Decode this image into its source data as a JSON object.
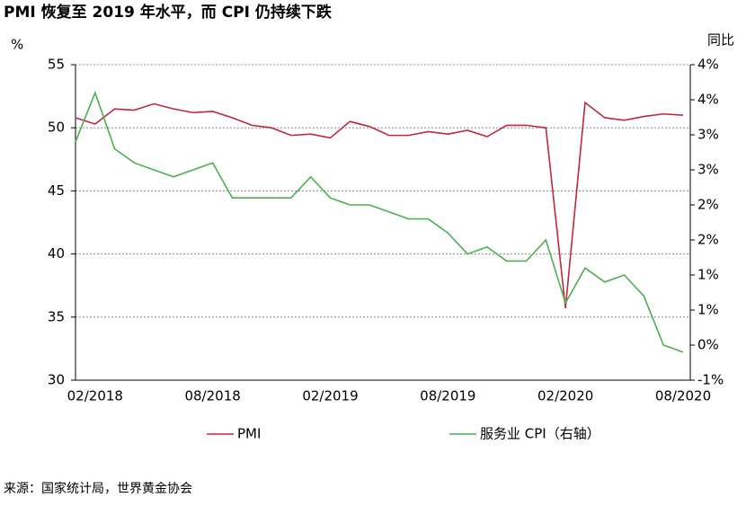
{
  "chart_data": {
    "type": "line",
    "title": "PMI 恢复至 2019 年水平，而 CPI 仍持续下跌",
    "y_label": "%",
    "y2_label": "同比",
    "source": "来源：国家统计局，世界黄金协会",
    "categories": [
      null,
      "02/2018",
      null,
      null,
      null,
      null,
      null,
      "08/2018",
      null,
      null,
      null,
      null,
      null,
      "02/2019",
      null,
      null,
      null,
      null,
      null,
      "08/2019",
      null,
      null,
      null,
      null,
      null,
      "02/2020",
      null,
      null,
      null,
      null,
      null,
      "08/2020"
    ],
    "ylim": [
      30,
      55
    ],
    "yticks": [
      30,
      35,
      40,
      45,
      50,
      55
    ],
    "y2lim": [
      -0.5,
      4
    ],
    "y2ticks": [
      {
        "value": -0.5,
        "label": "-1%"
      },
      {
        "value": 0,
        "label": "0%"
      },
      {
        "value": 0.5,
        "label": "1%"
      },
      {
        "value": 1,
        "label": "1%"
      },
      {
        "value": 1.5,
        "label": "2%"
      },
      {
        "value": 2,
        "label": "2%"
      },
      {
        "value": 2.5,
        "label": "3%"
      },
      {
        "value": 3,
        "label": "3%"
      },
      {
        "value": 3.5,
        "label": "4%"
      },
      {
        "value": 4,
        "label": "4%"
      }
    ],
    "grid": true,
    "series": [
      {
        "name": "PMI",
        "color": "#c0283c",
        "values": [
          50.8,
          50.3,
          51.5,
          51.4,
          51.9,
          51.5,
          51.2,
          51.3,
          50.8,
          50.2,
          50.0,
          49.4,
          49.5,
          49.2,
          50.5,
          50.1,
          49.4,
          49.4,
          49.7,
          49.5,
          49.8,
          49.3,
          50.2,
          50.2,
          50.0,
          35.7,
          52.0,
          50.8,
          50.6,
          50.9,
          51.1,
          51.0
        ]
      },
      {
        "name": "服务业 CPI（右轴）",
        "color": "#4caf50",
        "axis": "y2",
        "values": [
          2.9,
          3.6,
          2.8,
          2.6,
          2.5,
          2.4,
          2.5,
          2.6,
          2.1,
          2.1,
          2.1,
          2.1,
          2.4,
          2.1,
          2.0,
          2.0,
          1.9,
          1.8,
          1.8,
          1.6,
          1.3,
          1.4,
          1.2,
          1.2,
          1.5,
          0.6,
          1.1,
          0.9,
          1.0,
          0.7,
          0.0,
          -0.1
        ]
      }
    ]
  }
}
